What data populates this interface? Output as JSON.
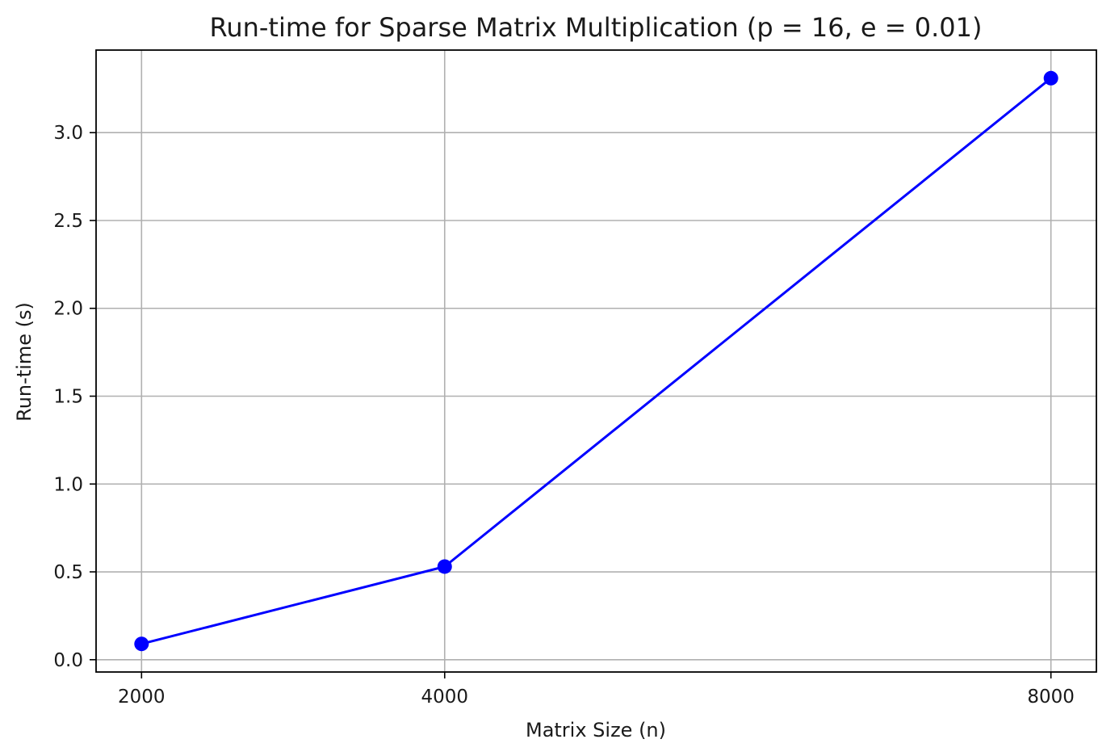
{
  "chart_data": {
    "type": "line",
    "title": "Run-time for Sparse Matrix Multiplication (p = 16, e = 0.01)",
    "xlabel": "Matrix Size (n)",
    "ylabel": "Run-time (s)",
    "x": [
      2000,
      4000,
      8000
    ],
    "series": [
      {
        "values": [
          0.09,
          0.53,
          3.31
        ],
        "color": "#0000ff",
        "marker": "circle"
      }
    ],
    "xlim": [
      1700,
      8300
    ],
    "ylim": [
      -0.07,
      3.47
    ],
    "xticks": [
      2000,
      4000,
      8000
    ],
    "xtick_labels": [
      "2000",
      "4000",
      "8000"
    ],
    "yticks": [
      0.0,
      0.5,
      1.0,
      1.5,
      2.0,
      2.5,
      3.0
    ],
    "ytick_labels": [
      "0.0",
      "0.5",
      "1.0",
      "1.5",
      "2.0",
      "2.5",
      "3.0"
    ],
    "grid": true,
    "legend": "none"
  }
}
